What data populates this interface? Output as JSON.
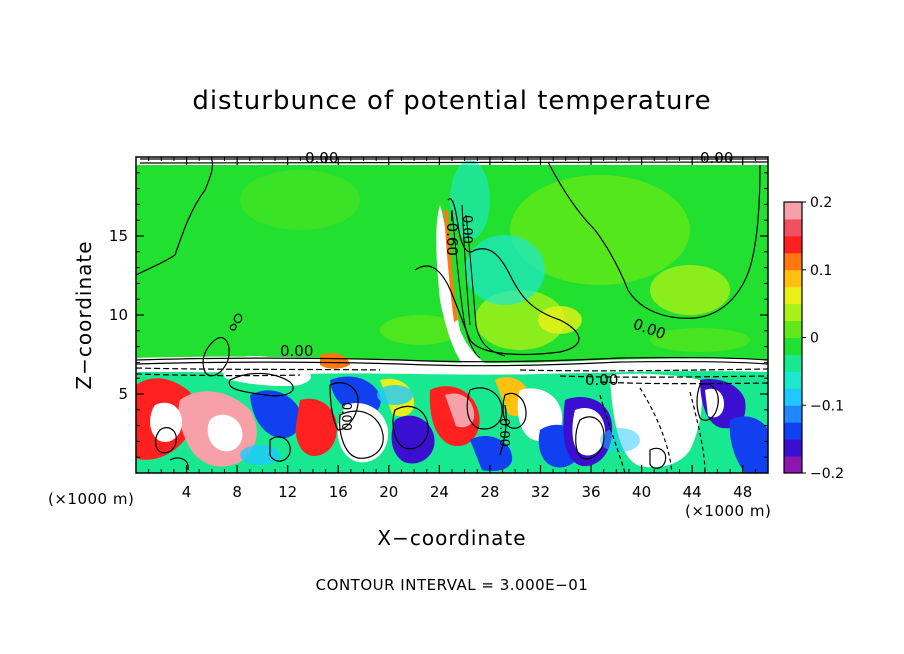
{
  "chart_data": {
    "type": "heatmap",
    "title": "disturbunce of potential temperature",
    "xlabel": "X−coordinate",
    "ylabel": "Z−coordinate",
    "x_unit_left": "(×1000 m)",
    "x_unit_right": "(×1000 m)",
    "xlim": [
      0,
      50
    ],
    "ylim": [
      0,
      20
    ],
    "x_ticks": [
      4,
      8,
      12,
      16,
      20,
      24,
      28,
      32,
      36,
      40,
      44,
      48
    ],
    "y_ticks": [
      5,
      10,
      15
    ],
    "colorbar": {
      "range": [
        -0.2,
        0.2
      ],
      "tick_labels": [
        "0.2",
        "0.1",
        "0",
        "−0.1",
        "−0.2"
      ],
      "tick_values": [
        0.2,
        0.1,
        0,
        -0.1,
        -0.2
      ],
      "colors": [
        "#8e16b0",
        "#3a0fd0",
        "#1040f0",
        "#1e88ff",
        "#20c8ff",
        "#1ce8d0",
        "#18e890",
        "#22e030",
        "#60e818",
        "#a8f018",
        "#e8f018",
        "#ffc010",
        "#ff7810",
        "#ff2020",
        "#f05060",
        "#f8a0a8"
      ]
    },
    "contour_labels": [
      "0.00",
      "0.00",
      "0.00",
      "0.00",
      "0.00",
      "−0.60",
      "0.00",
      "0.00",
      "0.00"
    ],
    "footnote": "CONTOUR INTERVAL = 3.000E−01"
  }
}
